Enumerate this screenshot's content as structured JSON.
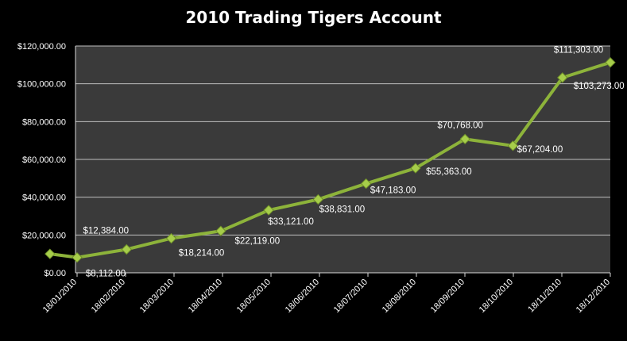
{
  "chart_data": {
    "type": "line",
    "title": "2010 Trading Tigers Account",
    "xlabel": "",
    "ylabel": "",
    "ylim": [
      0,
      120000
    ],
    "yticks": [
      "$0.00",
      "$20,000.00",
      "$40,000.00",
      "$60,000.00",
      "$80,000.00",
      "$100,000.00",
      "$120,000.00"
    ],
    "xticks": [
      "18/01/2010",
      "18/02/2010",
      "18/03/2010",
      "18/04/2010",
      "18/05/2010",
      "18/06/2010",
      "18/07/2010",
      "18/08/2010",
      "18/09/2010",
      "18/10/2010",
      "18/11/2010",
      "18/12/2010"
    ],
    "grid": true,
    "colors": {
      "background": "#000000",
      "plot_area": "#3a3a3a",
      "line": "#8db33a",
      "marker": "#a6cd4a",
      "gridline": "#bfbfbf"
    },
    "points": [
      {
        "x": "01/01/2010",
        "y": 10000,
        "label": ""
      },
      {
        "x": "18/01/2010",
        "y": 8112,
        "label": "$8,112.00"
      },
      {
        "x": "18/02/2010",
        "y": 12384,
        "label": "$12,384.00"
      },
      {
        "x": "18/03/2010",
        "y": 18214,
        "label": "$18,214.00"
      },
      {
        "x": "18/04/2010",
        "y": 22119,
        "label": "$22,119.00"
      },
      {
        "x": "18/05/2010",
        "y": 33121,
        "label": "$33,121.00"
      },
      {
        "x": "18/06/2010",
        "y": 38831,
        "label": "$38,831.00"
      },
      {
        "x": "18/07/2010",
        "y": 47183,
        "label": "$47,183.00"
      },
      {
        "x": "18/08/2010",
        "y": 55363,
        "label": "$55,363.00"
      },
      {
        "x": "18/09/2010",
        "y": 70768,
        "label": "$70,768.00"
      },
      {
        "x": "18/10/2010",
        "y": 67204,
        "label": "$67,204.00"
      },
      {
        "x": "18/11/2010",
        "y": 103273,
        "label": "$103,273.00"
      },
      {
        "x": "18/12/2010",
        "y": 111303,
        "label": "$111,303.00"
      }
    ]
  }
}
